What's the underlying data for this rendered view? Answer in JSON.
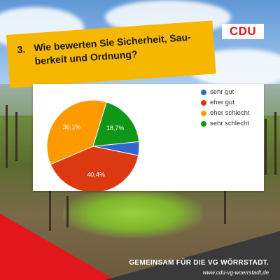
{
  "header": {
    "logo_text": "CDU",
    "question_number": "3.",
    "question_line1": "Wie bewerten Sie Sicherheit, Sau-",
    "question_line2": "berkeit und Ordnung?"
  },
  "footer": {
    "slogan": "GEMEINSAM FÜR DIE VG WÖRRSTADT.",
    "url": "www.cdu-vg-woerrstadt.de"
  },
  "colors": {
    "cdu_red": "#e2161b",
    "accent_yellow": "#f5b700",
    "dark_bar": "#3a3a3a"
  },
  "chart_data": {
    "type": "pie",
    "title": "",
    "legend_position": "right",
    "unit": "%",
    "slices": [
      {
        "label": "sehr gut",
        "value": 4.8,
        "color": "#3366cc",
        "display": ""
      },
      {
        "label": "eher gut",
        "value": 40.4,
        "color": "#dc3912",
        "display": "40,4%"
      },
      {
        "label": "eher schlecht",
        "value": 36.1,
        "color": "#ff9900",
        "display": "36,1%"
      },
      {
        "label": "sehr schlecht",
        "value": 18.7,
        "color": "#109618",
        "display": "18,7%"
      }
    ]
  }
}
